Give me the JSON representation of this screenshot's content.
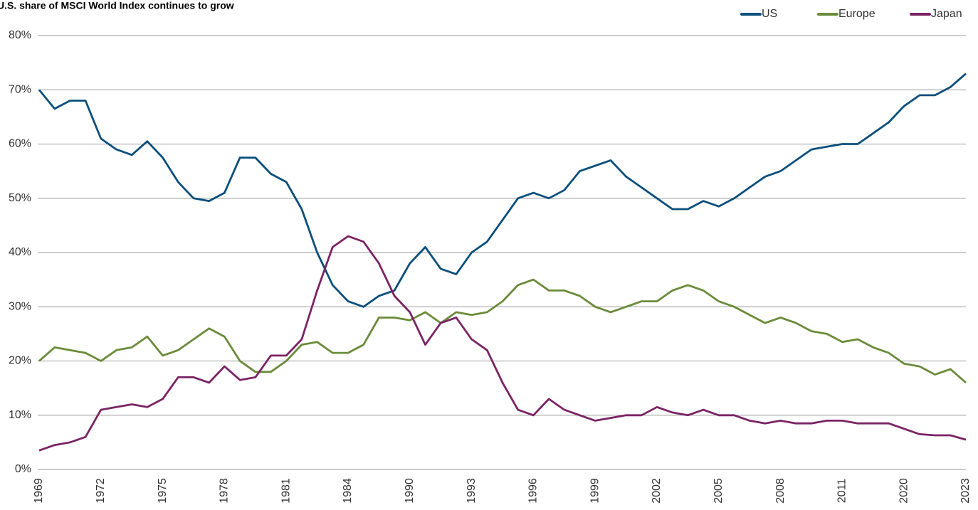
{
  "chart_data": {
    "type": "line",
    "title": "U.S. share of MSCI World Index continues to grow",
    "categories": [
      "1969",
      null,
      null,
      null,
      "1972",
      null,
      null,
      null,
      "1975",
      null,
      null,
      null,
      "1978",
      null,
      null,
      null,
      "1981",
      null,
      null,
      null,
      "1984",
      null,
      null,
      null,
      "1990",
      null,
      null,
      null,
      "1993",
      null,
      null,
      null,
      "1996",
      null,
      null,
      null,
      "1999",
      null,
      null,
      null,
      "2002",
      null,
      null,
      null,
      "2005",
      null,
      null,
      null,
      "2008",
      null,
      null,
      null,
      "2011",
      null,
      null,
      null,
      "2020",
      null,
      null,
      null,
      "2023"
    ],
    "series": [
      {
        "name": "US",
        "color": "#0b4f7c",
        "values": [
          70,
          66.5,
          68,
          68,
          61,
          59,
          58,
          60.5,
          57.5,
          53,
          50,
          49.5,
          51,
          57.5,
          57.5,
          54.5,
          53,
          48,
          40,
          34,
          31,
          30,
          32,
          33,
          38,
          41,
          37,
          36,
          40,
          42,
          46,
          50,
          51,
          50,
          51.5,
          55,
          56,
          57,
          54,
          52,
          50,
          48,
          48,
          49.5,
          48.5,
          50,
          52,
          54,
          55,
          57,
          59,
          59.5,
          60,
          60,
          62,
          64,
          67,
          69,
          69,
          70.5,
          73
        ]
      },
      {
        "name": "Europe",
        "color": "#6a8c3a",
        "values": [
          20,
          22.5,
          22,
          21.5,
          20,
          22,
          22.5,
          24.5,
          21,
          22,
          24,
          26,
          24.5,
          20,
          18,
          18,
          20,
          23,
          23.5,
          21.5,
          21.5,
          23,
          28,
          28,
          27.5,
          29,
          27,
          29,
          28.5,
          29,
          31,
          34,
          35,
          33,
          33,
          32,
          30,
          29,
          30,
          31,
          31,
          33,
          34,
          33,
          31,
          30,
          28.5,
          27,
          28,
          27,
          25.5,
          25,
          23.5,
          24,
          22.5,
          21.5,
          19.5,
          19,
          17.5,
          18.5,
          16
        ]
      },
      {
        "name": "Japan",
        "color": "#7b2464",
        "values": [
          3.5,
          4.5,
          5,
          6,
          11,
          11.5,
          12,
          11.5,
          13,
          17,
          17,
          16,
          19,
          16.5,
          17,
          21,
          21,
          24,
          33,
          41,
          43,
          42,
          38,
          32,
          29,
          23,
          27,
          28,
          24,
          22,
          16,
          11,
          10,
          13,
          11,
          10,
          9,
          9.5,
          10,
          10,
          11.5,
          10.5,
          10,
          11,
          10,
          10,
          9,
          8.5,
          9,
          8.5,
          8.5,
          9,
          9,
          8.5,
          8.5,
          8.5,
          7.5,
          6.5,
          6.3,
          6.3,
          5.5
        ]
      }
    ],
    "ylim": [
      0,
      80
    ],
    "yticks": [
      {
        "value": 0,
        "label": "0%"
      },
      {
        "value": 10,
        "label": "10%"
      },
      {
        "value": 20,
        "label": "20%"
      },
      {
        "value": 30,
        "label": "30%"
      },
      {
        "value": 40,
        "label": "40%"
      },
      {
        "value": 50,
        "label": "50%"
      },
      {
        "value": 60,
        "label": "60%"
      },
      {
        "value": 70,
        "label": "70%"
      },
      {
        "value": 80,
        "label": "80%"
      }
    ],
    "grid": true
  }
}
